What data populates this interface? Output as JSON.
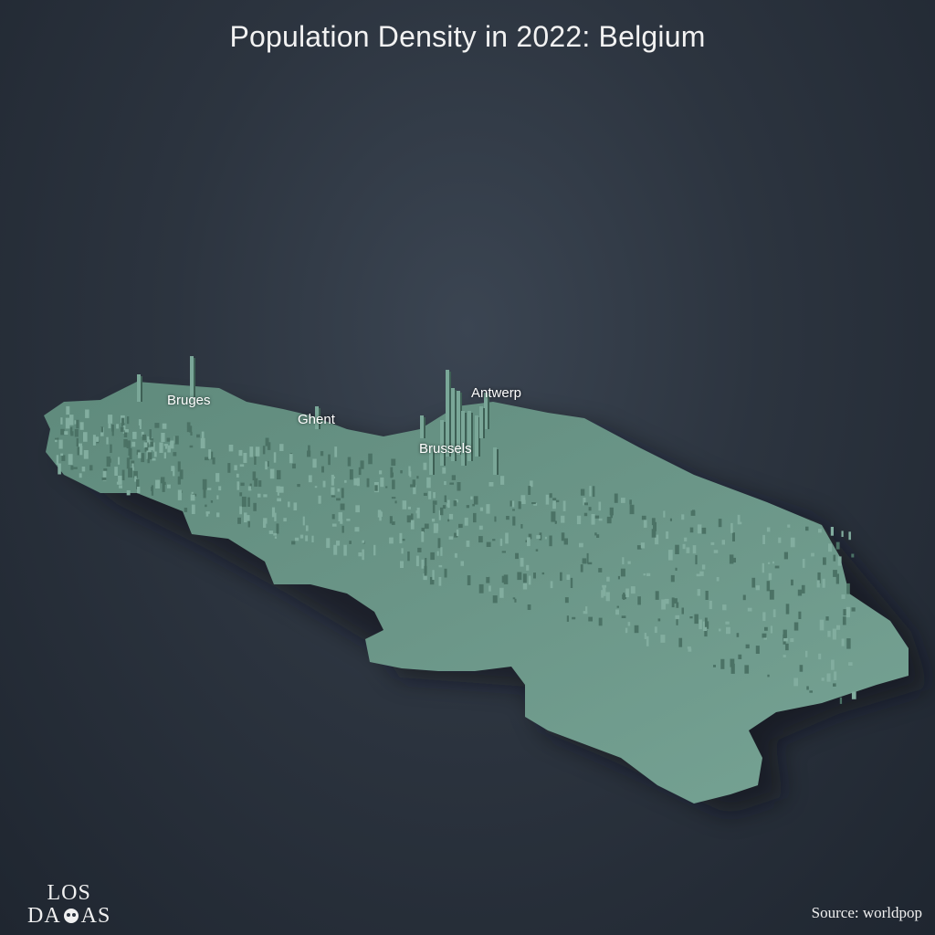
{
  "title": "Population Density in 2022: Belgium",
  "cities": [
    {
      "name": "Bruges"
    },
    {
      "name": "Ghent"
    },
    {
      "name": "Antwerp"
    },
    {
      "name": "Brussels"
    }
  ],
  "source": "Source: worldpop",
  "logo": {
    "line1": "LOS",
    "line2_left": "DA",
    "line2_right": "AS"
  },
  "colors": {
    "terrain": "#6e9a8c",
    "terrain_dark": "#3f5f55",
    "background": "#2c343f"
  }
}
